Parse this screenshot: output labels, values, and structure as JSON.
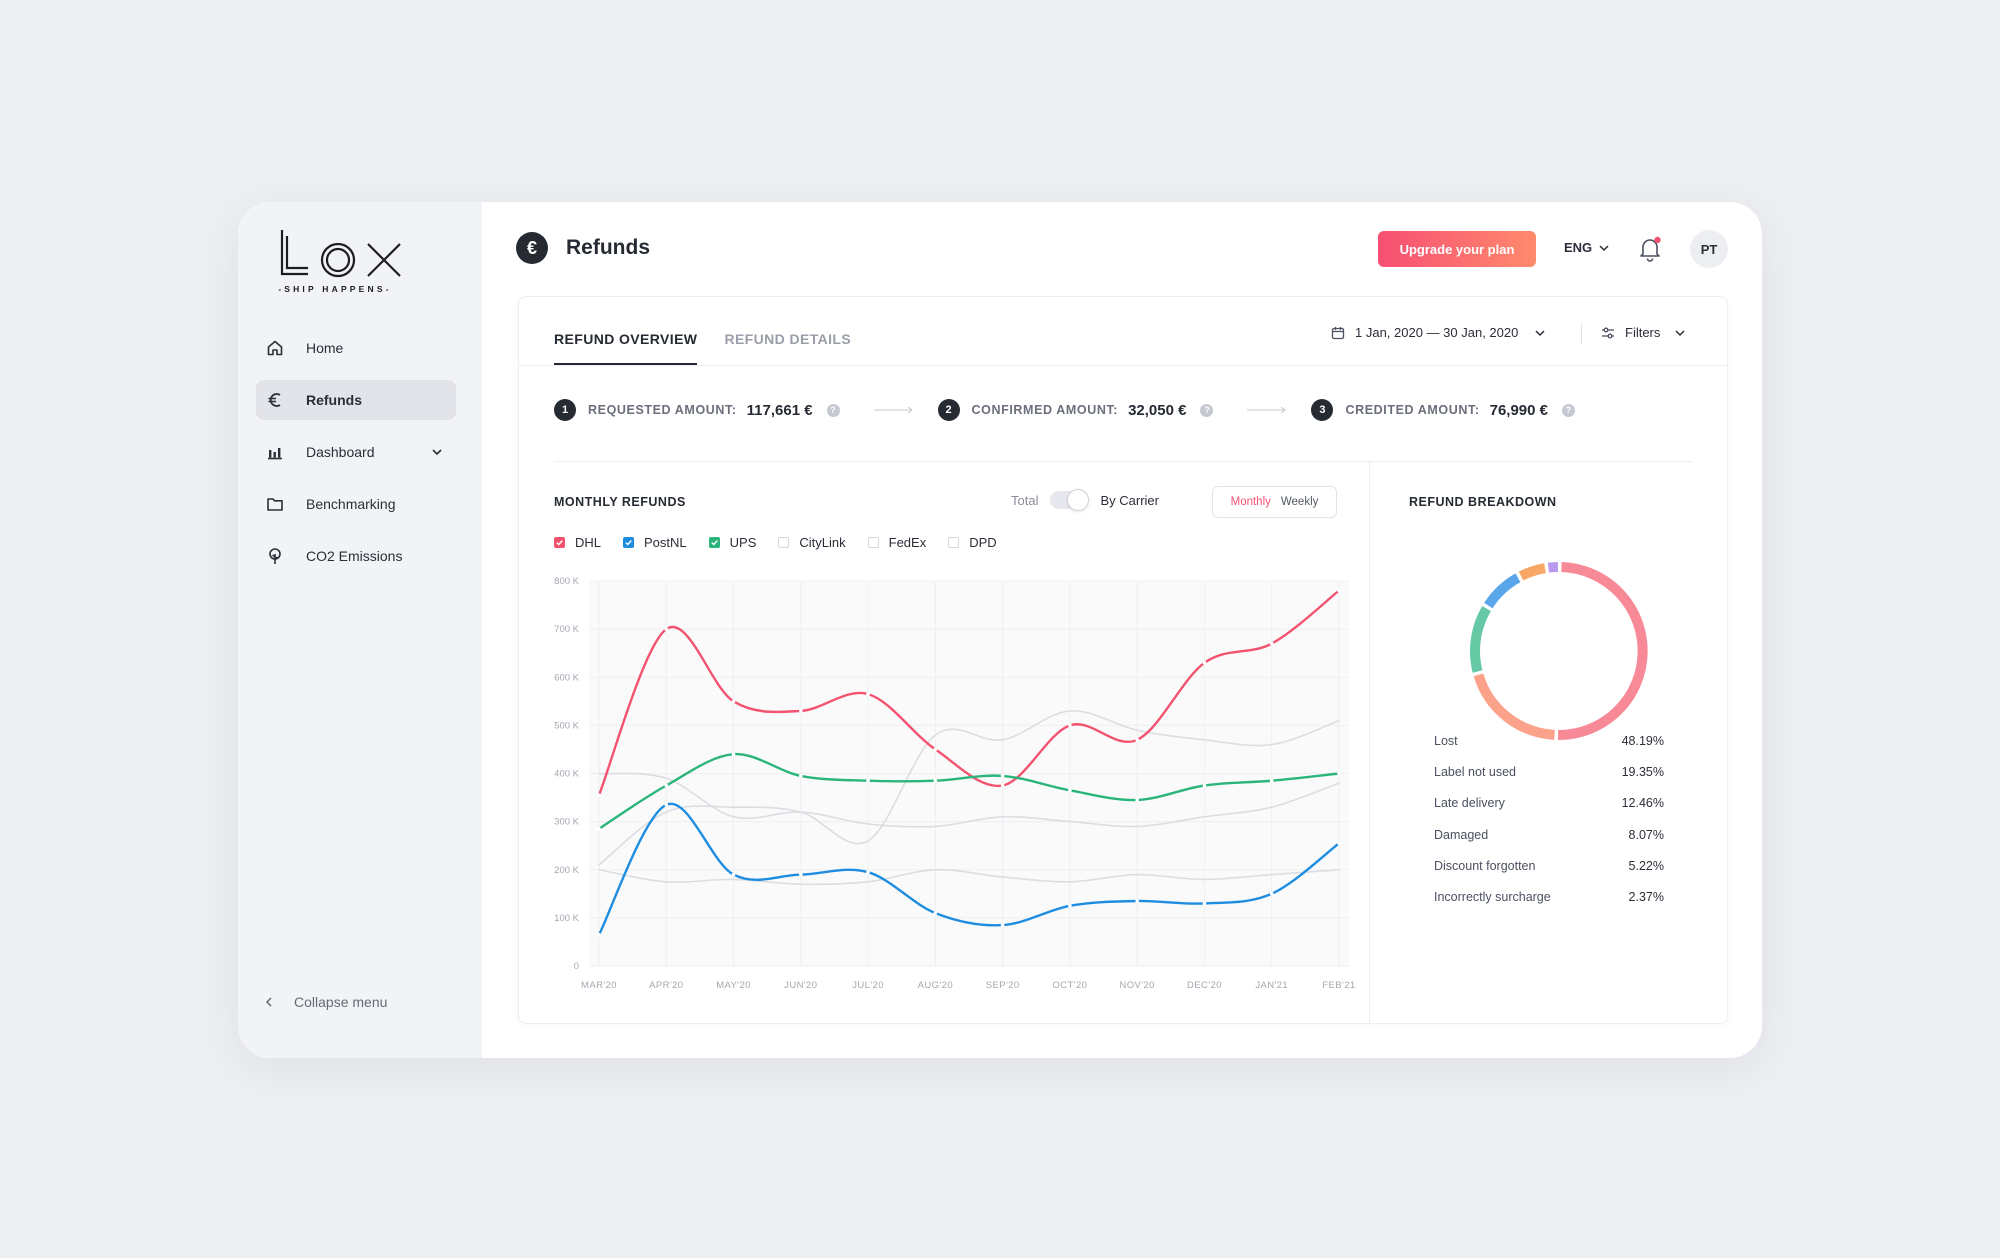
{
  "sidebar": {
    "logo_text": "LOX",
    "tagline": "-SHIP HAPPENS-",
    "items": [
      {
        "label": "Home",
        "icon": "home-icon"
      },
      {
        "label": "Refunds",
        "icon": "euro-icon"
      },
      {
        "label": "Dashboard",
        "icon": "bar-chart-icon"
      },
      {
        "label": "Benchmarking",
        "icon": "folder-icon"
      },
      {
        "label": "CO2 Emissions",
        "icon": "tree-icon"
      }
    ],
    "collapse_label": "Collapse menu"
  },
  "header": {
    "title": "Refunds",
    "upgrade_label": "Upgrade your plan",
    "language": "ENG",
    "avatar_initials": "PT"
  },
  "tabs": [
    "REFUND OVERVIEW",
    "REFUND DETAILS"
  ],
  "date_range": "1 Jan, 2020 — 30 Jan, 2020",
  "filters_label": "Filters",
  "steps": [
    {
      "num": "1",
      "label": "REQUESTED AMOUNT:",
      "value": "117,661 €"
    },
    {
      "num": "2",
      "label": "CONFIRMED AMOUNT:",
      "value": "32,050 €"
    },
    {
      "num": "3",
      "label": "CREDITED AMOUNT:",
      "value": "76,990 €"
    }
  ],
  "monthly": {
    "title": "MONTHLY REFUNDS",
    "toggle_total": "Total",
    "toggle_carrier": "By Carrier",
    "period_monthly": "Monthly",
    "period_weekly": "Weekly"
  },
  "colors": {
    "accent": "#f2536f",
    "dhl": "#f2536f",
    "postnl": "#1e8de0",
    "ups": "#2bb57a",
    "inactive": "#dcdde2"
  },
  "chart_data": {
    "type": "line",
    "categories": [
      "MAR'20",
      "APR'20",
      "MAY'20",
      "JUN'20",
      "JUL'20",
      "AUG'20",
      "SEP'20",
      "OCT'20",
      "NOV'20",
      "DEC'20",
      "JAN'21",
      "FEB'21"
    ],
    "y_ticks": [
      "0",
      "100 K",
      "200 K",
      "300 K",
      "400 K",
      "500 K",
      "600 K",
      "700 K",
      "800 K"
    ],
    "ylim": [
      0,
      800
    ],
    "series": [
      {
        "name": "DHL",
        "active": true,
        "color": "#f2536f",
        "values": [
          355,
          700,
          550,
          530,
          565,
          450,
          375,
          500,
          470,
          630,
          670,
          780
        ]
      },
      {
        "name": "PostNL",
        "active": true,
        "color": "#1e8de0",
        "values": [
          65,
          335,
          190,
          190,
          195,
          110,
          85,
          125,
          135,
          130,
          150,
          255
        ]
      },
      {
        "name": "UPS",
        "active": true,
        "color": "#2bb57a",
        "values": [
          285,
          375,
          440,
          395,
          385,
          385,
          395,
          365,
          345,
          375,
          385,
          400
        ]
      },
      {
        "name": "CityLink",
        "active": false,
        "color": "#dcdde2",
        "values": [
          210,
          320,
          330,
          320,
          260,
          480,
          470,
          530,
          490,
          470,
          460,
          510
        ]
      },
      {
        "name": "FedEx",
        "active": false,
        "color": "#dcdde2",
        "values": [
          400,
          390,
          310,
          320,
          295,
          290,
          310,
          300,
          290,
          310,
          330,
          380
        ]
      },
      {
        "name": "DPD",
        "active": false,
        "color": "#dcdde2",
        "values": [
          200,
          175,
          180,
          170,
          175,
          200,
          185,
          175,
          190,
          180,
          190,
          200
        ]
      }
    ]
  },
  "breakdown": {
    "title": "REFUND BREAKDOWN",
    "items": [
      {
        "label": "Lost",
        "value": "48.19%",
        "pct": 48.19,
        "color": "#f88a97"
      },
      {
        "label": "Label not used",
        "value": "19.35%",
        "pct": 19.35,
        "color": "#fca28a"
      },
      {
        "label": "Late delivery",
        "value": "12.46%",
        "pct": 12.46,
        "color": "#64c9a4"
      },
      {
        "label": "Damaged",
        "value": "8.07%",
        "pct": 8.07,
        "color": "#5aa6ea"
      },
      {
        "label": "Discount forgotten",
        "value": "5.22%",
        "pct": 5.22,
        "color": "#f9a766"
      },
      {
        "label": "Incorrectly surcharge",
        "value": "2.37%",
        "pct": 2.37,
        "color": "#b99af0"
      }
    ]
  }
}
